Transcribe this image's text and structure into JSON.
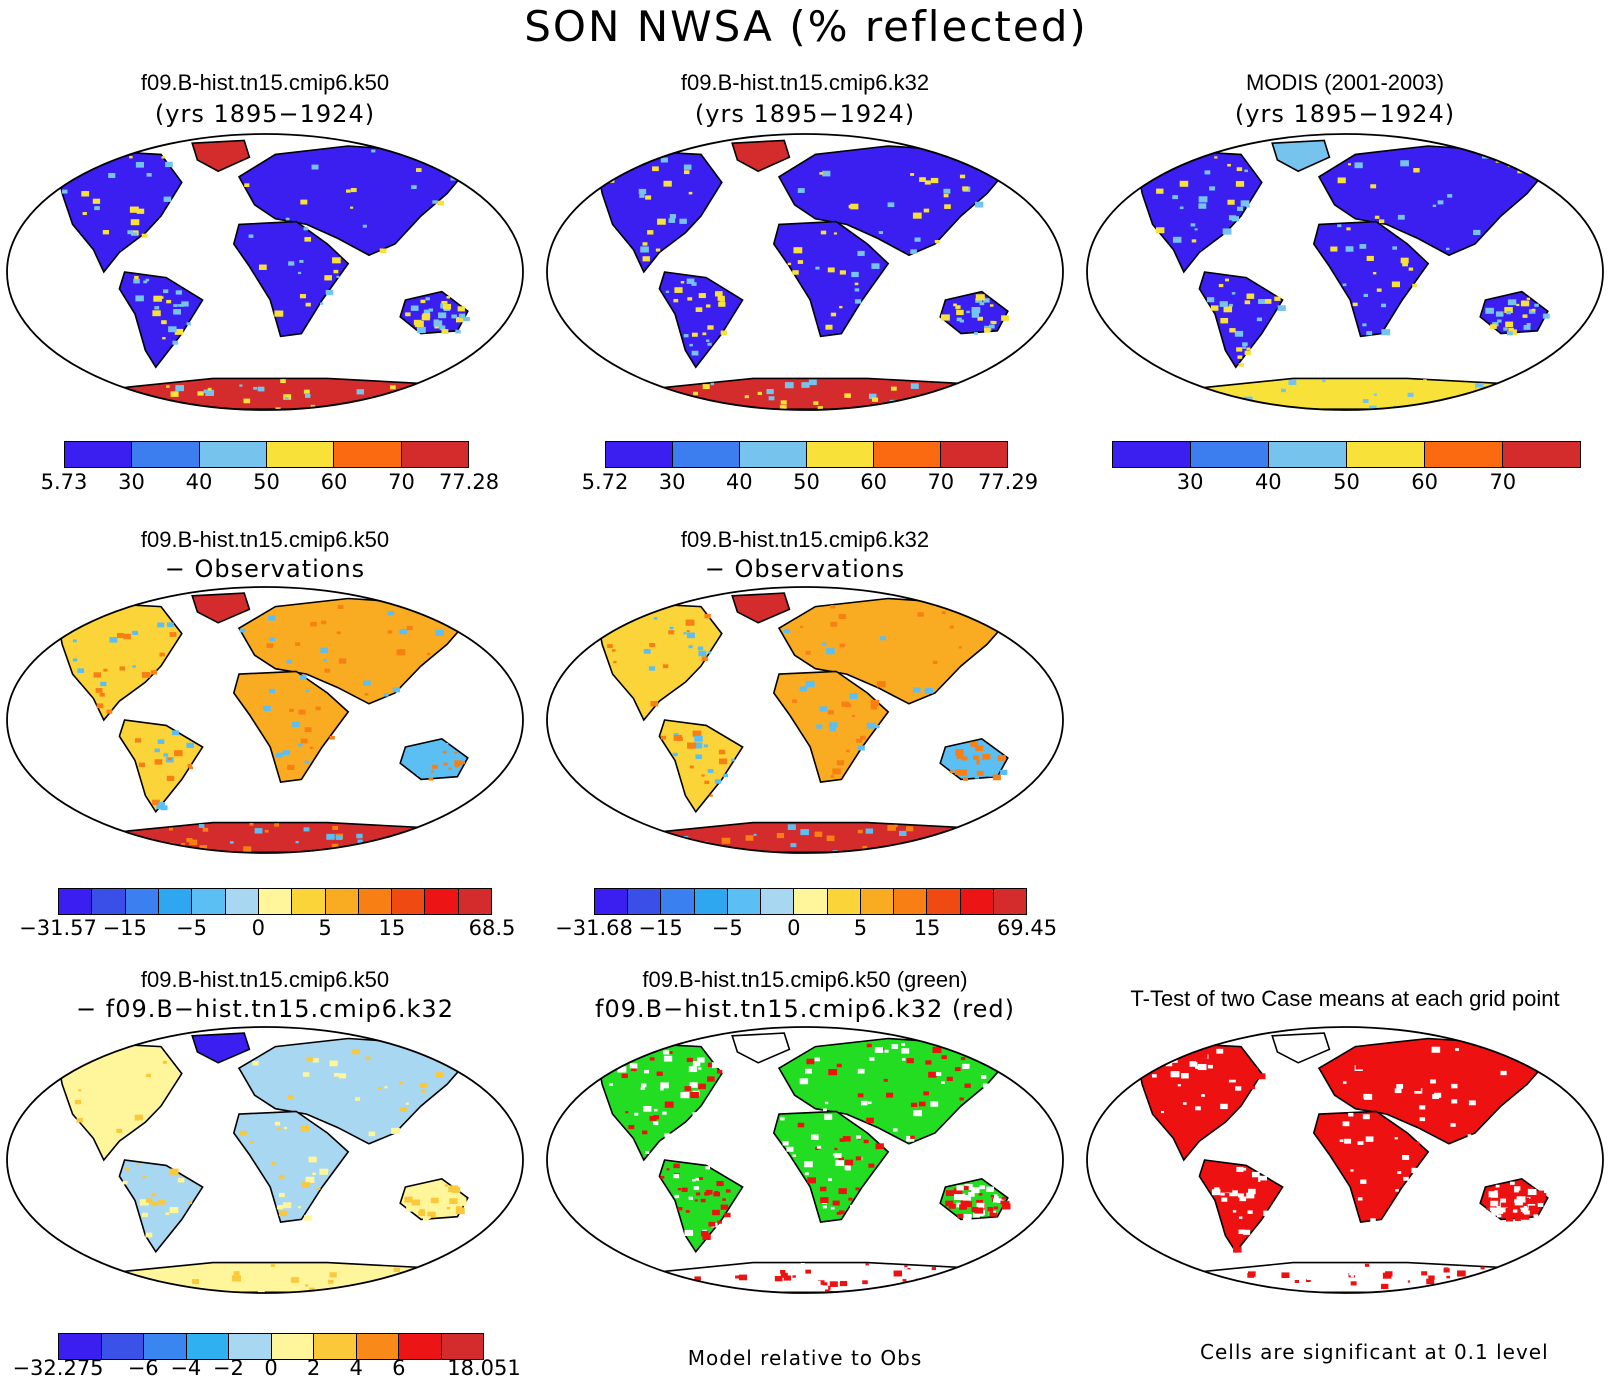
{
  "main_title": "SON NWSA (% reflected)",
  "colors": {
    "seq": [
      "#3b1ef0",
      "#3c7df0",
      "#76c4ee",
      "#f8e23a",
      "#fb6a10",
      "#d42c2c"
    ],
    "diff": [
      "#3b1ef0",
      "#3a4ee8",
      "#3a80f0",
      "#2fa6f0",
      "#5cbff3",
      "#a8d7f2",
      "#fff59a",
      "#fbd43a",
      "#f9ab22",
      "#f77f14",
      "#ee4a12",
      "#ec1414",
      "#d42c2c"
    ],
    "diff2": [
      "#3b1ef0",
      "#3a52e8",
      "#3a86f0",
      "#2fb0f0",
      "#a8d7f2",
      "#fff59a",
      "#fbc83a",
      "#f98a1a",
      "#ec1414",
      "#d42c2c"
    ],
    "green": "#22dd22",
    "red": "#ee1111"
  },
  "panels": [
    {
      "id": "p1",
      "title1": "f09.B-hist.tn15.cmip6.k50",
      "title2": "(yrs 1895−1924)",
      "ticks": [
        "5.73",
        "30",
        "40",
        "50",
        "60",
        "70",
        "77.28"
      ],
      "map": "seq"
    },
    {
      "id": "p2",
      "title1": "f09.B-hist.tn15.cmip6.k32",
      "title2": "(yrs 1895−1924)",
      "ticks": [
        "5.72",
        "30",
        "40",
        "50",
        "60",
        "70",
        "77.29"
      ],
      "map": "seq"
    },
    {
      "id": "p3",
      "title1": "MODIS (2001-2003)",
      "title2": "(yrs 1895−1924)",
      "ticks": [
        "30",
        "40",
        "50",
        "60",
        "70"
      ],
      "map": "modis"
    },
    {
      "id": "p4",
      "title1": "f09.B-hist.tn15.cmip6.k50",
      "title2": "− Observations",
      "ticks": [
        "−31.57",
        "−15",
        "−5",
        "0",
        "5",
        "15",
        "68.5"
      ],
      "map": "diff"
    },
    {
      "id": "p5",
      "title1": "f09.B-hist.tn15.cmip6.k32",
      "title2": "− Observations",
      "ticks": [
        "−31.68",
        "−15",
        "−5",
        "0",
        "5",
        "15",
        "69.45"
      ],
      "map": "diff"
    },
    {
      "id": "p6",
      "title1": "f09.B-hist.tn15.cmip6.k50",
      "title2": "− f09.B−hist.tn15.cmip6.k32",
      "ticks": [
        "−32.275",
        "−6",
        "−4",
        "−2",
        "0",
        "2",
        "4",
        "6",
        "18.051"
      ],
      "map": "diff2"
    },
    {
      "id": "p7",
      "title1": "f09.B-hist.tn15.cmip6.k50 (green)",
      "title2": "f09.B−hist.tn15.cmip6.k32 (red)",
      "map": "greenred"
    },
    {
      "id": "p8",
      "title1": "T-Test of two Case means at each grid point",
      "title2": "",
      "map": "ttest"
    }
  ],
  "footnotes": {
    "model_relative": "Model relative to Obs",
    "significance": "Cells are significant at 0.1 level"
  }
}
